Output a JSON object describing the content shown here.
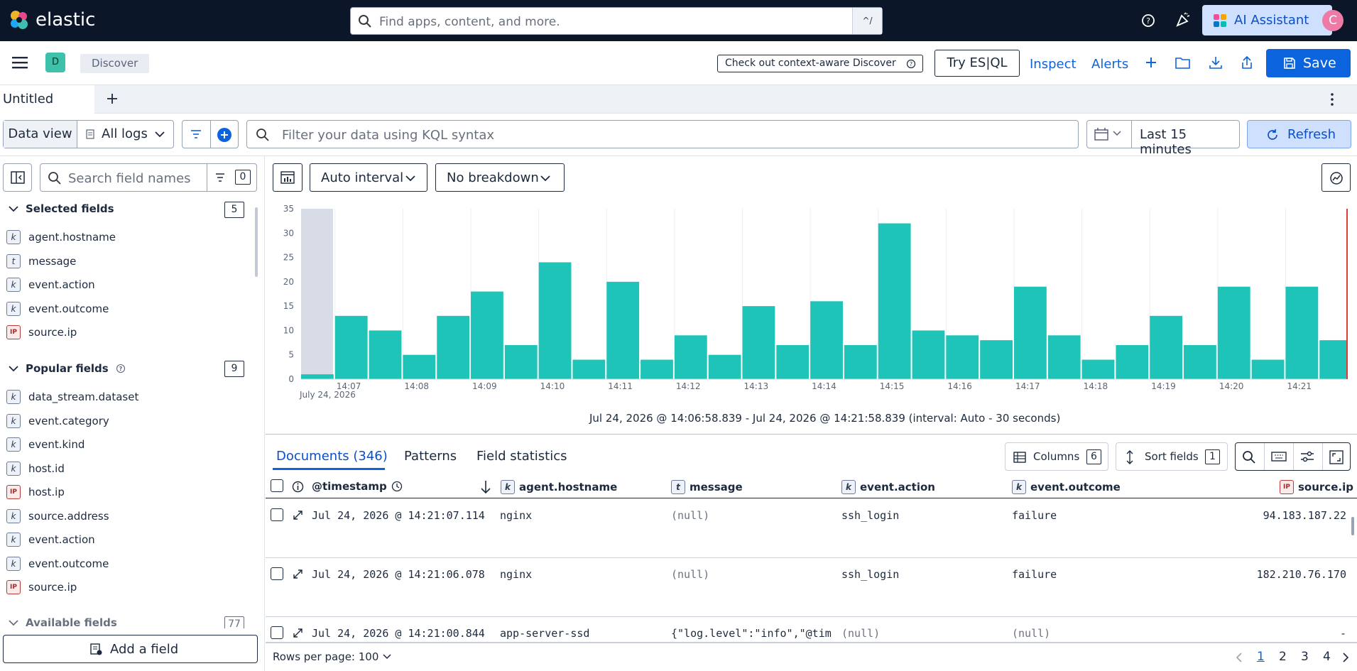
{
  "topbar": {
    "brand": "elastic",
    "search_placeholder": "Find apps, content, and more.",
    "search_shortcut": "^/",
    "ai_assistant_label": "AI Assistant",
    "avatar_initial": "C"
  },
  "header": {
    "space_badge": "D",
    "breadcrumb": "Discover",
    "context_aware_label": "Check out context-aware Discover",
    "try_esql_label": "Try ES|QL",
    "inspect_label": "Inspect",
    "alerts_label": "Alerts",
    "save_label": "Save"
  },
  "tabs": [
    {
      "label": "Untitled"
    }
  ],
  "filters": {
    "data_view_label": "Data view",
    "data_view_value": "All logs",
    "kql_placeholder": "Filter your data using KQL syntax",
    "time_range": "Last 15 minutes",
    "refresh_label": "Refresh"
  },
  "sidebar": {
    "search_placeholder": "Search field names",
    "filter_count": "0",
    "selected_title": "Selected fields",
    "selected_count": "5",
    "selected_fields": [
      {
        "type": "k",
        "name": "agent.hostname"
      },
      {
        "type": "t",
        "name": "message"
      },
      {
        "type": "k",
        "name": "event.action"
      },
      {
        "type": "k",
        "name": "event.outcome"
      },
      {
        "type": "ip",
        "name": "source.ip"
      }
    ],
    "popular_title": "Popular fields",
    "popular_count": "9",
    "popular_fields": [
      {
        "type": "k",
        "name": "data_stream.dataset"
      },
      {
        "type": "k",
        "name": "event.category"
      },
      {
        "type": "k",
        "name": "event.kind"
      },
      {
        "type": "k",
        "name": "host.id"
      },
      {
        "type": "ip",
        "name": "host.ip"
      },
      {
        "type": "k",
        "name": "source.address"
      },
      {
        "type": "k",
        "name": "event.action"
      },
      {
        "type": "k",
        "name": "event.outcome"
      },
      {
        "type": "ip",
        "name": "source.ip"
      }
    ],
    "available_title": "Available fields",
    "available_count": "77",
    "add_field_label": "Add a field"
  },
  "chart_controls": {
    "interval_label": "Auto interval",
    "breakdown_label": "No breakdown"
  },
  "chart_data": {
    "type": "bar",
    "ylim": [
      0,
      35
    ],
    "yticks": [
      0,
      5,
      10,
      15,
      20,
      25,
      30,
      35
    ],
    "xticks": [
      "14:07",
      "14:08",
      "14:09",
      "14:10",
      "14:11",
      "14:12",
      "14:13",
      "14:14",
      "14:15",
      "14:16",
      "14:17",
      "14:18",
      "14:19",
      "14:20",
      "14:21"
    ],
    "x_sublabel": "July 24, 2026",
    "values": [
      1,
      13,
      10,
      5,
      13,
      18,
      7,
      24,
      4,
      20,
      4,
      9,
      5,
      15,
      7,
      16,
      7,
      32,
      10,
      9,
      8,
      19,
      9,
      4,
      7,
      13,
      7,
      19,
      4,
      19,
      8
    ],
    "bar_color": "#1fc4b8",
    "caption": "Jul 24, 2026 @ 14:06:58.839 - Jul 24, 2026 @ 14:21:58.839 (interval: Auto - 30 seconds)"
  },
  "table": {
    "tab_documents": "Documents (346)",
    "tab_patterns": "Patterns",
    "tab_field_stats": "Field statistics",
    "columns_label": "Columns",
    "columns_count": "6",
    "sort_label": "Sort fields",
    "sort_count": "1",
    "headers": {
      "timestamp": "@timestamp",
      "agent_hostname": "agent.hostname",
      "message": "message",
      "event_action": "event.action",
      "event_outcome": "event.outcome",
      "source_ip": "source.ip"
    },
    "rows": [
      {
        "timestamp": "Jul 24, 2026 @ 14:21:07.114",
        "host": "nginx",
        "message": "(null)",
        "action": "ssh_login",
        "outcome": "failure",
        "ip": "94.183.187.22"
      },
      {
        "timestamp": "Jul 24, 2026 @ 14:21:06.078",
        "host": "nginx",
        "message": "(null)",
        "action": "ssh_login",
        "outcome": "failure",
        "ip": "182.210.76.170"
      },
      {
        "timestamp": "Jul 24, 2026 @ 14:21:00.844",
        "host": "app-server-ssd",
        "message": "{\"log.level\":\"info\",\"@tim",
        "action": "(null)",
        "outcome": "(null)",
        "ip": "-"
      }
    ],
    "rows_per_page": "Rows per page: 100",
    "pages": [
      "1",
      "2",
      "3",
      "4"
    ]
  }
}
